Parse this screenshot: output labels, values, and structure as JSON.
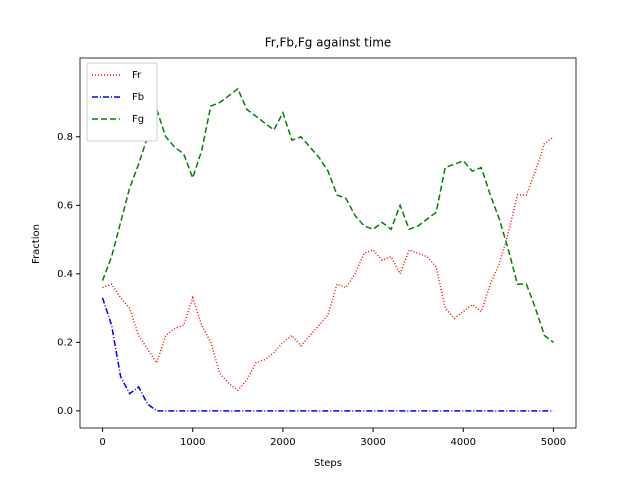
{
  "chart_data": {
    "type": "line",
    "title": "Fr,Fb,Fg against time",
    "xlabel": "Steps",
    "ylabel": "Fraction",
    "x": [
      0,
      100,
      200,
      300,
      400,
      500,
      600,
      700,
      800,
      900,
      1000,
      1100,
      1200,
      1300,
      1400,
      1500,
      1600,
      1700,
      1800,
      1900,
      2000,
      2100,
      2200,
      2300,
      2400,
      2500,
      2600,
      2700,
      2800,
      2900,
      3000,
      3100,
      3200,
      3300,
      3400,
      3500,
      3600,
      3700,
      3800,
      3900,
      4000,
      4100,
      4200,
      4300,
      4400,
      4500,
      4600,
      4700,
      4800,
      4900,
      5000
    ],
    "series": [
      {
        "name": "Fr",
        "color": "#ff0000",
        "linestyle": "dotted",
        "values": [
          0.36,
          0.37,
          0.33,
          0.3,
          0.22,
          0.18,
          0.14,
          0.22,
          0.24,
          0.25,
          0.33,
          0.25,
          0.2,
          0.11,
          0.08,
          0.06,
          0.09,
          0.14,
          0.15,
          0.17,
          0.2,
          0.22,
          0.19,
          0.22,
          0.25,
          0.28,
          0.37,
          0.36,
          0.4,
          0.46,
          0.47,
          0.44,
          0.45,
          0.4,
          0.47,
          0.46,
          0.45,
          0.42,
          0.3,
          0.27,
          0.29,
          0.31,
          0.29,
          0.37,
          0.43,
          0.52,
          0.63,
          0.63,
          0.7,
          0.78,
          0.8
        ]
      },
      {
        "name": "Fb",
        "color": "#0000ff",
        "linestyle": "dashdot",
        "values": [
          0.33,
          0.25,
          0.1,
          0.05,
          0.07,
          0.02,
          0,
          0,
          0,
          0,
          0,
          0,
          0,
          0,
          0,
          0,
          0,
          0,
          0,
          0,
          0,
          0,
          0,
          0,
          0,
          0,
          0,
          0,
          0,
          0,
          0,
          0,
          0,
          0,
          0,
          0,
          0,
          0,
          0,
          0,
          0,
          0,
          0,
          0,
          0,
          0,
          0,
          0,
          0,
          0,
          0
        ]
      },
      {
        "name": "Fg",
        "color": "#008000",
        "linestyle": "dashed",
        "values": [
          0.38,
          0.45,
          0.55,
          0.65,
          0.72,
          0.8,
          0.88,
          0.8,
          0.77,
          0.75,
          0.68,
          0.76,
          0.89,
          0.9,
          0.92,
          0.94,
          0.88,
          0.86,
          0.84,
          0.82,
          0.87,
          0.79,
          0.8,
          0.77,
          0.74,
          0.7,
          0.63,
          0.62,
          0.57,
          0.54,
          0.53,
          0.55,
          0.53,
          0.6,
          0.53,
          0.54,
          0.56,
          0.58,
          0.71,
          0.72,
          0.73,
          0.7,
          0.71,
          0.63,
          0.56,
          0.47,
          0.37,
          0.37,
          0.3,
          0.22,
          0.2
        ]
      }
    ],
    "xlim": [
      -250,
      5250
    ],
    "xticks": [
      0,
      1000,
      2000,
      3000,
      4000,
      5000
    ],
    "ylim": [
      -0.05,
      1.03
    ],
    "yticks": [
      {
        "value": 0,
        "label": "0.0"
      },
      0.2,
      0.4,
      0.6,
      0.8
    ],
    "legend": "upper left"
  }
}
